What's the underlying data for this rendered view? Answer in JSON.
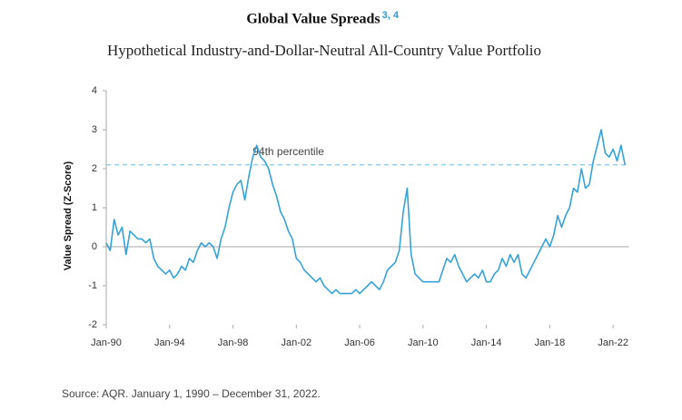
{
  "chart_data": {
    "type": "line",
    "title": "Global Value Spreads",
    "title_superscript": "3, 4",
    "subtitle": "Hypothetical Industry-and-Dollar-Neutral All-Country Value Portfolio",
    "y_label": "Value Spread (Z-Score)",
    "source": "Source: AQR. January 1, 1990 – December 31, 2022.",
    "reference_line": {
      "value": 2.1,
      "label": "94th percentile"
    },
    "xlim": [
      1990,
      2023
    ],
    "ylim": [
      -2,
      4
    ],
    "yticks": [
      -2,
      -1,
      0,
      1,
      2,
      3,
      4
    ],
    "xticks": [
      {
        "value": 1990,
        "label": "Jan-90"
      },
      {
        "value": 1994,
        "label": "Jan-94"
      },
      {
        "value": 1998,
        "label": "Jan-98"
      },
      {
        "value": 2002,
        "label": "Jan-02"
      },
      {
        "value": 2006,
        "label": "Jan-06"
      },
      {
        "value": 2010,
        "label": "Jan-10"
      },
      {
        "value": 2014,
        "label": "Jan-14"
      },
      {
        "value": 2018,
        "label": "Jan-18"
      },
      {
        "value": 2022,
        "label": "Jan-22"
      }
    ],
    "x": [
      1990,
      1990.25,
      1990.5,
      1990.75,
      1991,
      1991.25,
      1991.5,
      1991.75,
      1992,
      1992.25,
      1992.5,
      1992.75,
      1993,
      1993.25,
      1993.5,
      1993.75,
      1994,
      1994.25,
      1994.5,
      1994.75,
      1995,
      1995.25,
      1995.5,
      1995.75,
      1996,
      1996.25,
      1996.5,
      1996.75,
      1997,
      1997.25,
      1997.5,
      1997.75,
      1998,
      1998.25,
      1998.5,
      1998.75,
      1999,
      1999.25,
      1999.5,
      1999.75,
      2000,
      2000.25,
      2000.5,
      2000.75,
      2001,
      2001.25,
      2001.5,
      2001.75,
      2002,
      2002.25,
      2002.5,
      2002.75,
      2003,
      2003.25,
      2003.5,
      2003.75,
      2004,
      2004.25,
      2004.5,
      2004.75,
      2005,
      2005.25,
      2005.5,
      2005.75,
      2006,
      2006.25,
      2006.5,
      2006.75,
      2007,
      2007.25,
      2007.5,
      2007.75,
      2008,
      2008.25,
      2008.5,
      2008.75,
      2009,
      2009.25,
      2009.5,
      2009.75,
      2010,
      2010.25,
      2010.5,
      2010.75,
      2011,
      2011.25,
      2011.5,
      2011.75,
      2012,
      2012.25,
      2012.5,
      2012.75,
      2013,
      2013.25,
      2013.5,
      2013.75,
      2014,
      2014.25,
      2014.5,
      2014.75,
      2015,
      2015.25,
      2015.5,
      2015.75,
      2016,
      2016.25,
      2016.5,
      2016.75,
      2017,
      2017.25,
      2017.5,
      2017.75,
      2018,
      2018.25,
      2018.5,
      2018.75,
      2019,
      2019.25,
      2019.5,
      2019.75,
      2020,
      2020.25,
      2020.5,
      2020.75,
      2021,
      2021.25,
      2021.5,
      2021.75,
      2022,
      2022.25,
      2022.5,
      2022.75
    ],
    "series": [
      {
        "name": "Value Spread",
        "color": "#35a2d8",
        "values": [
          0.1,
          -0.1,
          0.7,
          0.3,
          0.5,
          -0.2,
          0.4,
          0.3,
          0.2,
          0.2,
          0.1,
          0.2,
          -0.3,
          -0.5,
          -0.6,
          -0.7,
          -0.6,
          -0.8,
          -0.7,
          -0.5,
          -0.6,
          -0.3,
          -0.4,
          -0.1,
          0.1,
          0.0,
          0.1,
          0.0,
          -0.3,
          0.2,
          0.5,
          1.0,
          1.4,
          1.6,
          1.7,
          1.2,
          1.8,
          2.3,
          2.6,
          2.3,
          2.2,
          2.0,
          1.6,
          1.3,
          0.9,
          0.7,
          0.4,
          0.2,
          -0.3,
          -0.4,
          -0.6,
          -0.7,
          -0.8,
          -0.9,
          -0.8,
          -1.0,
          -1.1,
          -1.2,
          -1.1,
          -1.2,
          -1.2,
          -1.2,
          -1.2,
          -1.1,
          -1.2,
          -1.1,
          -1.0,
          -0.9,
          -1.0,
          -1.1,
          -0.9,
          -0.6,
          -0.5,
          -0.4,
          -0.1,
          0.9,
          1.5,
          -0.2,
          -0.7,
          -0.8,
          -0.9,
          -0.9,
          -0.9,
          -0.9,
          -0.9,
          -0.6,
          -0.3,
          -0.4,
          -0.2,
          -0.5,
          -0.7,
          -0.9,
          -0.8,
          -0.7,
          -0.8,
          -0.6,
          -0.9,
          -0.9,
          -0.7,
          -0.6,
          -0.3,
          -0.5,
          -0.2,
          -0.4,
          -0.2,
          -0.7,
          -0.8,
          -0.6,
          -0.4,
          -0.2,
          0.0,
          0.2,
          0.0,
          0.3,
          0.8,
          0.5,
          0.8,
          1.0,
          1.5,
          1.4,
          2.0,
          1.5,
          1.6,
          2.2,
          2.6,
          3.0,
          2.4,
          2.3,
          2.5,
          2.2,
          2.6,
          2.1
        ]
      }
    ]
  }
}
